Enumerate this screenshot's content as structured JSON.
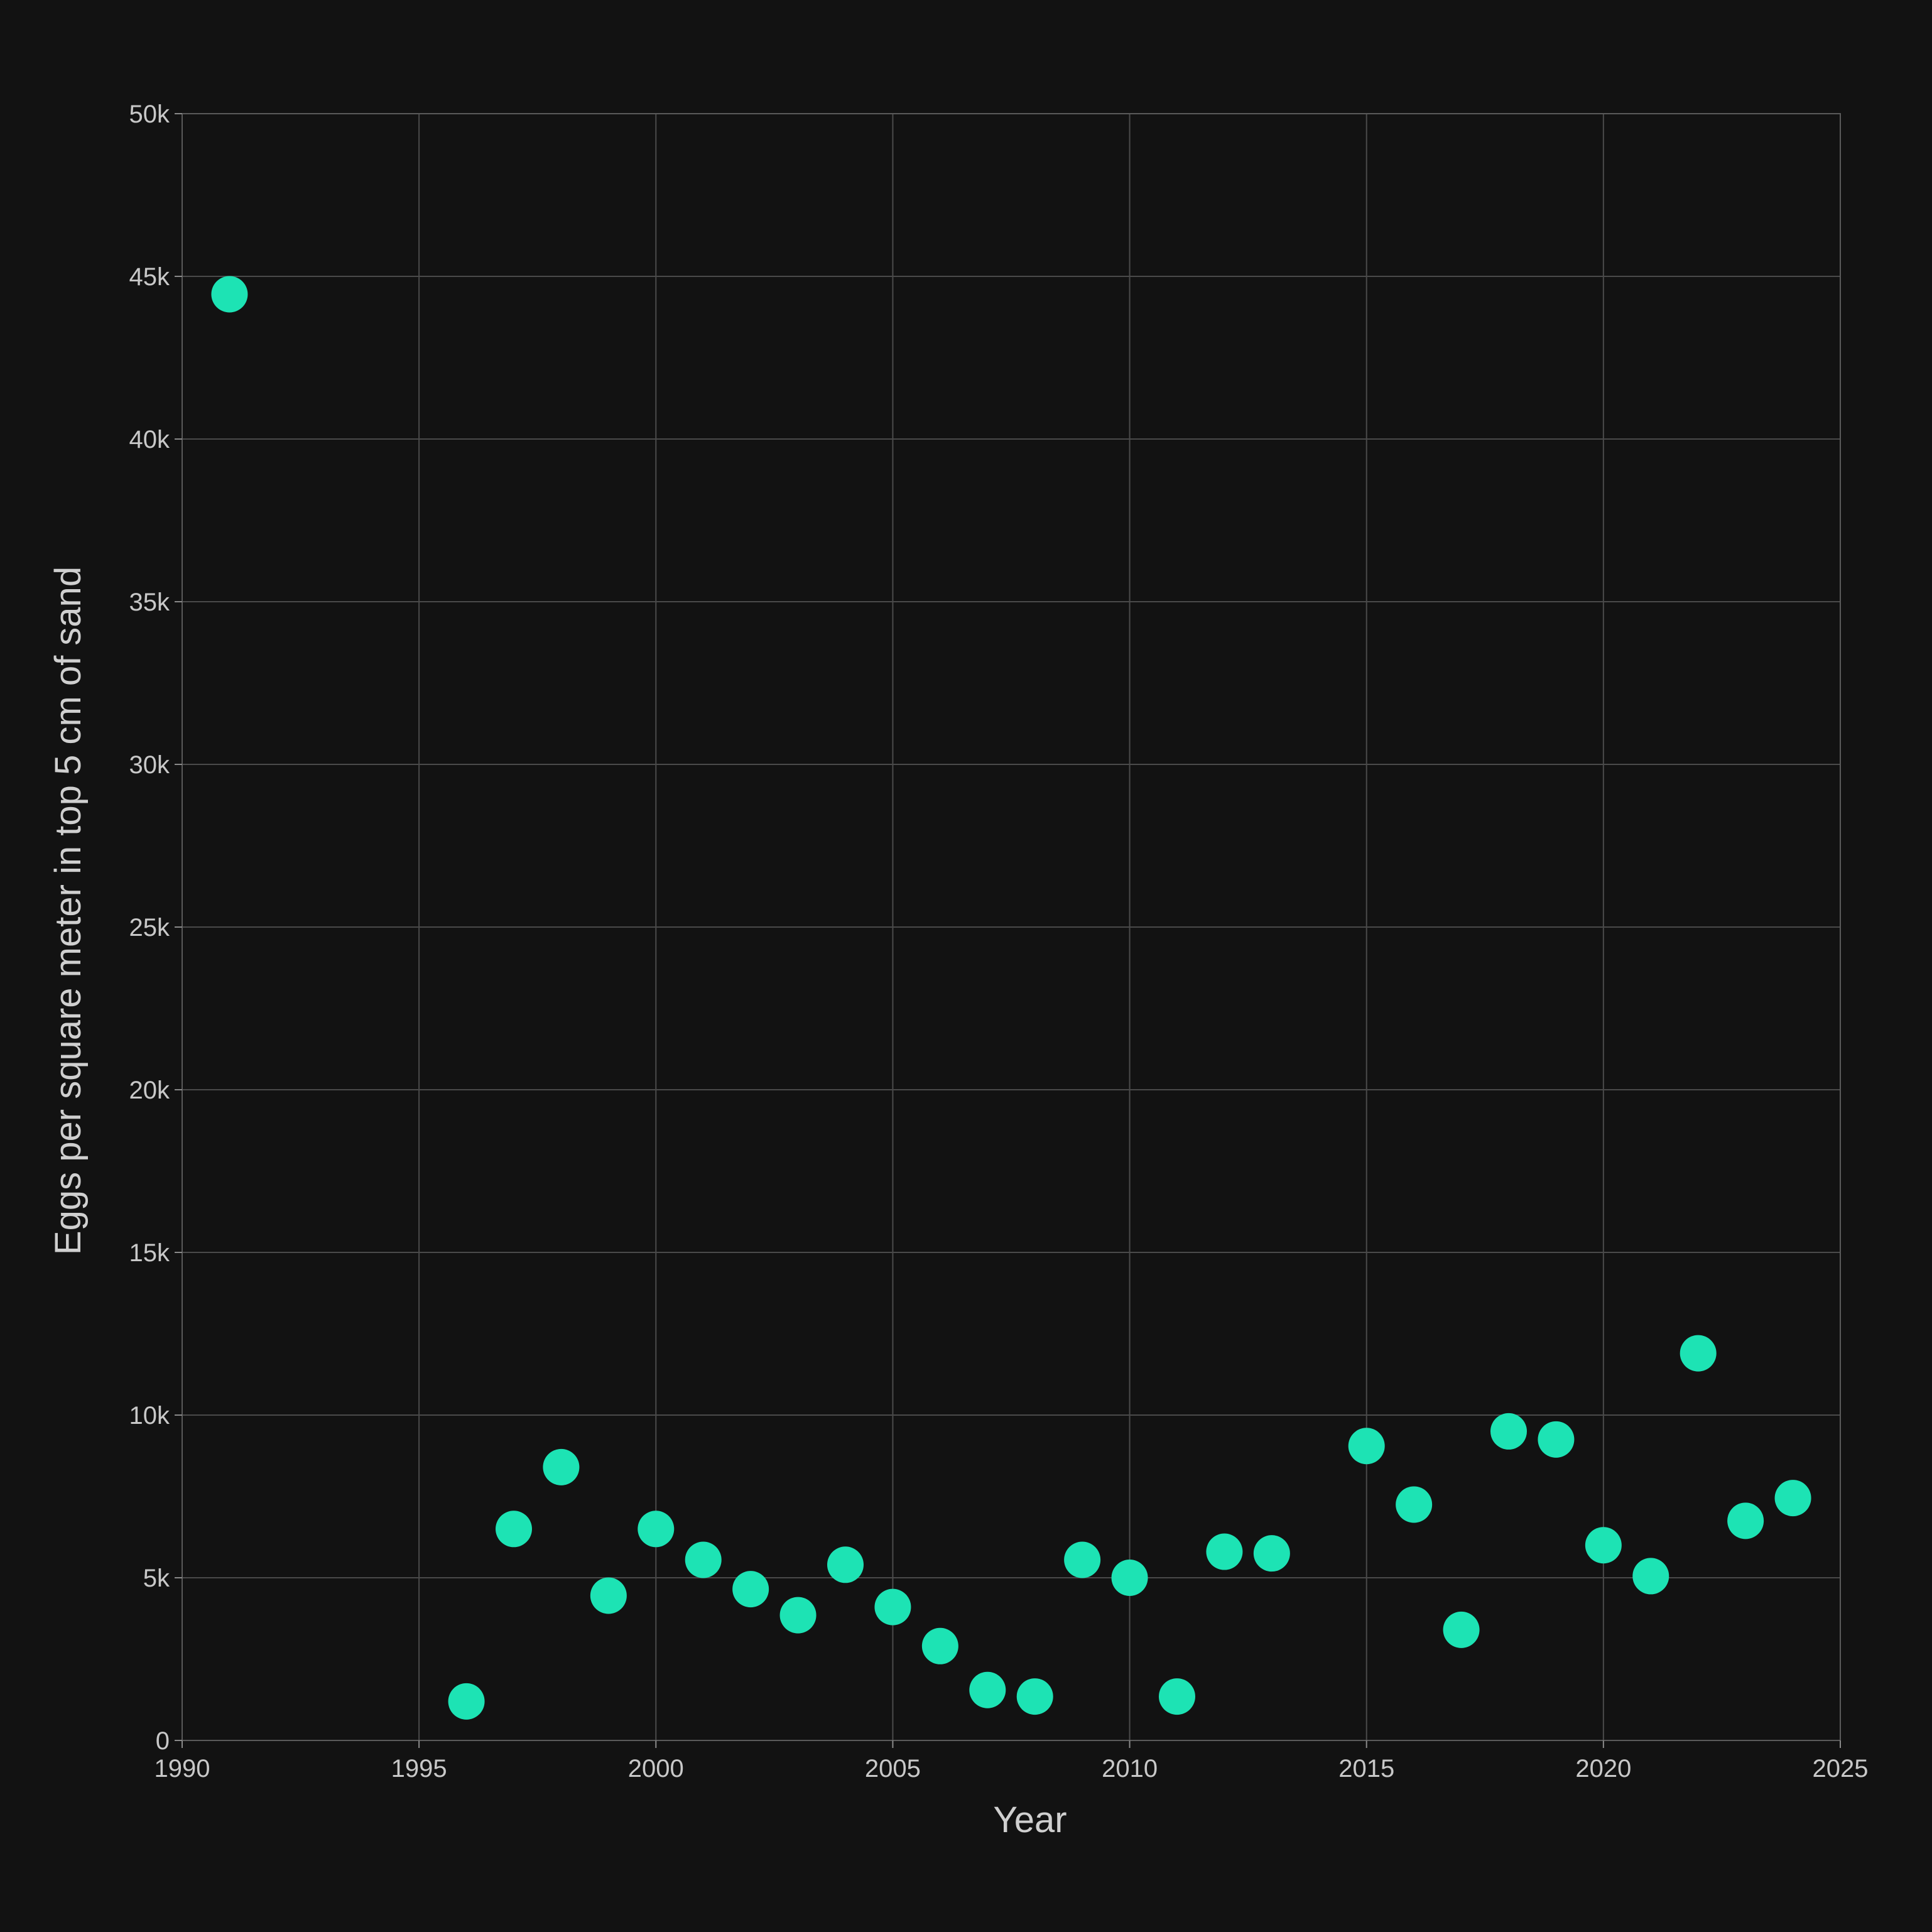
{
  "chart_data": {
    "type": "scatter",
    "title": "",
    "xlabel": "Year",
    "ylabel": "Eggs per square meter in top 5 cm of sand",
    "xlim": [
      1990,
      2025
    ],
    "ylim": [
      0,
      50000
    ],
    "x_ticks": [
      1990,
      1995,
      2000,
      2005,
      2010,
      2015,
      2020,
      2025
    ],
    "x_tick_labels": [
      "1990",
      "1995",
      "2000",
      "2005",
      "2010",
      "2015",
      "2020",
      "2025"
    ],
    "y_ticks": [
      0,
      5000,
      10000,
      15000,
      20000,
      25000,
      30000,
      35000,
      40000,
      45000,
      50000
    ],
    "y_tick_labels": [
      "0",
      "5k",
      "10k",
      "15k",
      "20k",
      "25k",
      "30k",
      "35k",
      "40k",
      "45k",
      "50k"
    ],
    "grid": true,
    "marker_color": "#1de3b4",
    "series": [
      {
        "x": [
          1991,
          1996,
          1997,
          1998,
          1999,
          2000,
          2001,
          2002,
          2003,
          2004,
          2005,
          2006,
          2007,
          2008,
          2009,
          2010,
          2011,
          2012,
          2013,
          2015,
          2016,
          2017,
          2018,
          2019,
          2020,
          2021,
          2022,
          2023,
          2024
        ],
        "y": [
          44450,
          1200,
          6500,
          8400,
          4450,
          6500,
          5550,
          4650,
          3850,
          5400,
          4100,
          2900,
          1550,
          1350,
          5550,
          5000,
          1350,
          5800,
          5750,
          9050,
          7250,
          3400,
          9500,
          9250,
          6000,
          5050,
          11900,
          6750,
          7450
        ]
      }
    ]
  }
}
